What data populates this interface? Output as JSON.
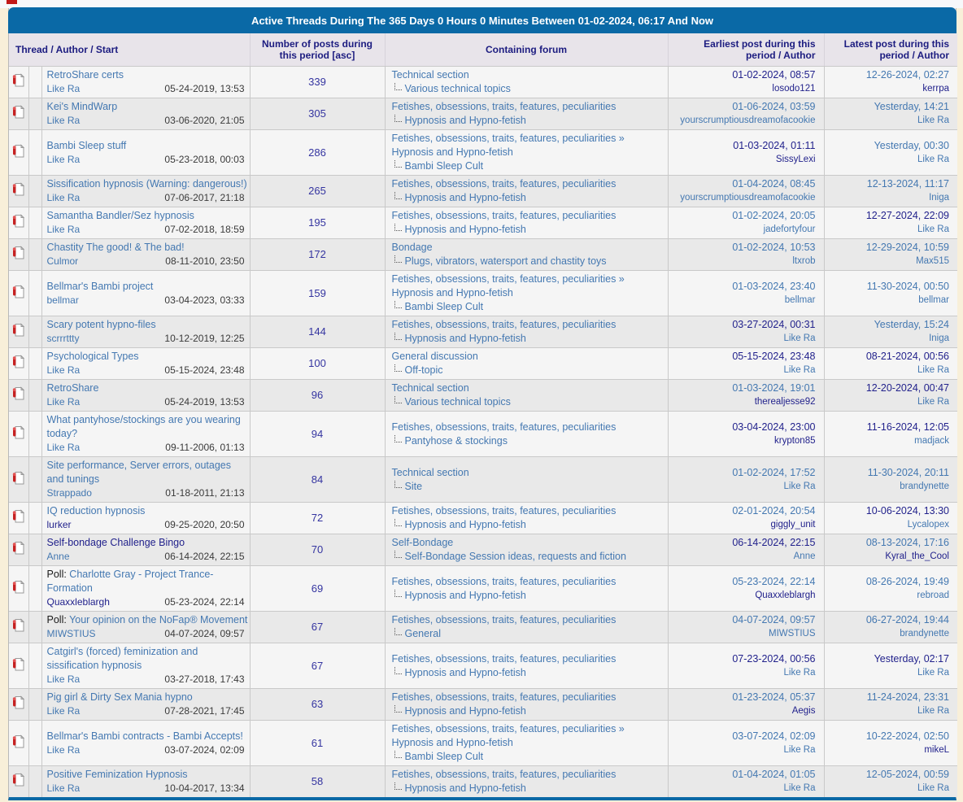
{
  "title": "Active Threads During The 365 Days 0 Hours 0 Minutes Between 01-02-2024, 06:17 And Now",
  "columns": {
    "thread": "Thread / Author / Start",
    "posts": "Number of posts during this period",
    "posts_sort": "[asc]",
    "forum": "Containing forum",
    "earliest": "Earliest post during this period / Author",
    "latest": "Latest post during this period / Author"
  },
  "colors": {
    "header_blue": "#0a69a6",
    "page_cream": "#f8efd9",
    "link_blue": "#4478b1",
    "visited_navy": "#22228c",
    "row_light": "#f5f5f5",
    "row_dark": "#e9e9e9",
    "red_marker": "#c11818"
  },
  "rows": [
    {
      "title": "RetroShare certs",
      "title_visited": false,
      "author": "Like Ra",
      "author_visited": false,
      "start": "05-24-2019, 13:53",
      "posts": "339",
      "forum_parent": "Technical section",
      "subforum": "Various technical topics",
      "earliest_date": "01-02-2024, 08:57",
      "earliest_date_visited": true,
      "earliest_author": "losodo121",
      "earliest_author_visited": true,
      "latest_date": "12-26-2024, 02:27",
      "latest_date_visited": false,
      "latest_author": "kerrpa",
      "latest_author_visited": true
    },
    {
      "title": "Kei's MindWarp",
      "title_visited": false,
      "author": "Like Ra",
      "author_visited": false,
      "start": "03-06-2020, 21:05",
      "posts": "305",
      "forum_parent": "Fetishes, obsessions, traits, features, peculiarities",
      "subforum": "Hypnosis and Hypno-fetish",
      "earliest_date": "01-06-2024, 03:59",
      "earliest_date_visited": false,
      "earliest_author": "yourscrumptiousdreamofacookie",
      "earliest_author_visited": false,
      "latest_date": "Yesterday, 14:21",
      "latest_date_visited": false,
      "latest_author": "Like Ra",
      "latest_author_visited": false
    },
    {
      "title": "Bambi Sleep stuff",
      "title_visited": false,
      "author": "Like Ra",
      "author_visited": false,
      "start": "05-23-2018, 00:03",
      "posts": "286",
      "forum_parent": "Fetishes, obsessions, traits, features, peculiarities » Hypnosis and Hypno-fetish",
      "subforum": "Bambi Sleep Cult",
      "earliest_date": "01-03-2024, 01:11",
      "earliest_date_visited": true,
      "earliest_author": "SissyLexi",
      "earliest_author_visited": true,
      "latest_date": "Yesterday, 00:30",
      "latest_date_visited": false,
      "latest_author": "Like Ra",
      "latest_author_visited": false
    },
    {
      "title": "Sissification hypnosis (Warning: dangerous!)",
      "title_visited": false,
      "author": "Like Ra",
      "author_visited": false,
      "start": "07-06-2017, 21:18",
      "posts": "265",
      "forum_parent": "Fetishes, obsessions, traits, features, peculiarities",
      "subforum": "Hypnosis and Hypno-fetish",
      "earliest_date": "01-04-2024, 08:45",
      "earliest_date_visited": false,
      "earliest_author": "yourscrumptiousdreamofacookie",
      "earliest_author_visited": false,
      "latest_date": "12-13-2024, 11:17",
      "latest_date_visited": false,
      "latest_author": "Iniga",
      "latest_author_visited": false
    },
    {
      "title": "Samantha Bandler/Sez hypnosis",
      "title_visited": false,
      "author": "Like Ra",
      "author_visited": false,
      "start": "07-02-2018, 18:59",
      "posts": "195",
      "forum_parent": "Fetishes, obsessions, traits, features, peculiarities",
      "subforum": "Hypnosis and Hypno-fetish",
      "earliest_date": "01-02-2024, 20:05",
      "earliest_date_visited": false,
      "earliest_author": "jadefortyfour",
      "earliest_author_visited": false,
      "latest_date": "12-27-2024, 22:09",
      "latest_date_visited": true,
      "latest_author": "Like Ra",
      "latest_author_visited": false
    },
    {
      "title": "Chastity The good! & The bad!",
      "title_visited": false,
      "author": "Culmor",
      "author_visited": false,
      "start": "08-11-2010, 23:50",
      "posts": "172",
      "forum_parent": "Bondage",
      "subforum": "Plugs, vibrators, watersport and chastity toys",
      "earliest_date": "01-02-2024, 10:53",
      "earliest_date_visited": false,
      "earliest_author": "ltxrob",
      "earliest_author_visited": false,
      "latest_date": "12-29-2024, 10:59",
      "latest_date_visited": false,
      "latest_author": "Max515",
      "latest_author_visited": false
    },
    {
      "title": "Bellmar's Bambi project",
      "title_visited": false,
      "author": "bellmar",
      "author_visited": false,
      "start": "03-04-2023, 03:33",
      "posts": "159",
      "forum_parent": "Fetishes, obsessions, traits, features, peculiarities » Hypnosis and Hypno-fetish",
      "subforum": "Bambi Sleep Cult",
      "earliest_date": "01-03-2024, 23:40",
      "earliest_date_visited": false,
      "earliest_author": "bellmar",
      "earliest_author_visited": false,
      "latest_date": "11-30-2024, 00:50",
      "latest_date_visited": false,
      "latest_author": "bellmar",
      "latest_author_visited": false
    },
    {
      "title": "Scary potent hypno-files",
      "title_visited": false,
      "author": "scrrrttty",
      "author_visited": false,
      "start": "10-12-2019, 12:25",
      "posts": "144",
      "forum_parent": "Fetishes, obsessions, traits, features, peculiarities",
      "subforum": "Hypnosis and Hypno-fetish",
      "earliest_date": "03-27-2024, 00:31",
      "earliest_date_visited": true,
      "earliest_author": "Like Ra",
      "earliest_author_visited": false,
      "latest_date": "Yesterday, 15:24",
      "latest_date_visited": false,
      "latest_author": "Iniga",
      "latest_author_visited": false
    },
    {
      "title": "Psychological Types",
      "title_visited": false,
      "author": "Like Ra",
      "author_visited": false,
      "start": "05-15-2024, 23:48",
      "posts": "100",
      "forum_parent": "General discussion",
      "subforum": "Off-topic",
      "earliest_date": "05-15-2024, 23:48",
      "earliest_date_visited": true,
      "earliest_author": "Like Ra",
      "earliest_author_visited": false,
      "latest_date": "08-21-2024, 00:56",
      "latest_date_visited": true,
      "latest_author": "Like Ra",
      "latest_author_visited": false
    },
    {
      "title": "RetroShare",
      "title_visited": false,
      "author": "Like Ra",
      "author_visited": false,
      "start": "05-24-2019, 13:53",
      "posts": "96",
      "forum_parent": "Technical section",
      "subforum": "Various technical topics",
      "earliest_date": "01-03-2024, 19:01",
      "earliest_date_visited": false,
      "earliest_author": "therealjesse92",
      "earliest_author_visited": true,
      "latest_date": "12-20-2024, 00:47",
      "latest_date_visited": true,
      "latest_author": "Like Ra",
      "latest_author_visited": false
    },
    {
      "title": "What pantyhose/stockings are you wearing today?",
      "title_visited": false,
      "author": "Like Ra",
      "author_visited": false,
      "start": "09-11-2006, 01:13",
      "posts": "94",
      "forum_parent": "Fetishes, obsessions, traits, features, peculiarities",
      "subforum": "Pantyhose & stockings",
      "earliest_date": "03-04-2024, 23:00",
      "earliest_date_visited": true,
      "earliest_author": "krypton85",
      "earliest_author_visited": true,
      "latest_date": "11-16-2024, 12:05",
      "latest_date_visited": true,
      "latest_author": "madjack",
      "latest_author_visited": false
    },
    {
      "title": "Site performance, Server errors, outages and tunings",
      "title_visited": false,
      "author": "Strappado",
      "author_visited": false,
      "start": "01-18-2011, 21:13",
      "posts": "84",
      "forum_parent": "Technical section",
      "subforum": "Site",
      "earliest_date": "01-02-2024, 17:52",
      "earliest_date_visited": false,
      "earliest_author": "Like Ra",
      "earliest_author_visited": false,
      "latest_date": "11-30-2024, 20:11",
      "latest_date_visited": false,
      "latest_author": "brandynette",
      "latest_author_visited": false
    },
    {
      "title": "IQ reduction hypnosis",
      "title_visited": false,
      "author": "lurker",
      "author_visited": true,
      "start": "09-25-2020, 20:50",
      "posts": "72",
      "forum_parent": "Fetishes, obsessions, traits, features, peculiarities",
      "subforum": "Hypnosis and Hypno-fetish",
      "earliest_date": "02-01-2024, 20:54",
      "earliest_date_visited": false,
      "earliest_author": "giggly_unit",
      "earliest_author_visited": true,
      "latest_date": "10-06-2024, 13:30",
      "latest_date_visited": true,
      "latest_author": "Lycalopex",
      "latest_author_visited": false
    },
    {
      "title": "Self-bondage Challenge Bingo",
      "title_visited": true,
      "author": "Anne",
      "author_visited": false,
      "start": "06-14-2024, 22:15",
      "posts": "70",
      "forum_parent": "Self-Bondage",
      "subforum": "Self-Bondage Session ideas, requests and fiction",
      "earliest_date": "06-14-2024, 22:15",
      "earliest_date_visited": true,
      "earliest_author": "Anne",
      "earliest_author_visited": false,
      "latest_date": "08-13-2024, 17:16",
      "latest_date_visited": false,
      "latest_author": "Kyral_the_Cool",
      "latest_author_visited": true
    },
    {
      "poll_prefix": "Poll:",
      "title": "Charlotte Gray - Project Trance-Formation",
      "title_visited": false,
      "author": "Quaxxleblargh",
      "author_visited": true,
      "start": "05-23-2024, 22:14",
      "posts": "69",
      "forum_parent": "Fetishes, obsessions, traits, features, peculiarities",
      "subforum": "Hypnosis and Hypno-fetish",
      "earliest_date": "05-23-2024, 22:14",
      "earliest_date_visited": false,
      "earliest_author": "Quaxxleblargh",
      "earliest_author_visited": true,
      "latest_date": "08-26-2024, 19:49",
      "latest_date_visited": false,
      "latest_author": "rebroad",
      "latest_author_visited": false
    },
    {
      "poll_prefix": "Poll:",
      "title": "Your opinion on the NoFap® Movement",
      "title_visited": false,
      "author": "MIWSTIUS",
      "author_visited": false,
      "start": "04-07-2024, 09:57",
      "posts": "67",
      "forum_parent": "Fetishes, obsessions, traits, features, peculiarities",
      "subforum": "General",
      "earliest_date": "04-07-2024, 09:57",
      "earliest_date_visited": false,
      "earliest_author": "MIWSTIUS",
      "earliest_author_visited": false,
      "latest_date": "06-27-2024, 19:44",
      "latest_date_visited": false,
      "latest_author": "brandynette",
      "latest_author_visited": false
    },
    {
      "title": "Catgirl's (forced) feminization and sissification hypnosis",
      "title_visited": false,
      "author": "Like Ra",
      "author_visited": false,
      "start": "03-27-2018, 17:43",
      "posts": "67",
      "forum_parent": "Fetishes, obsessions, traits, features, peculiarities",
      "subforum": "Hypnosis and Hypno-fetish",
      "earliest_date": "07-23-2024, 00:56",
      "earliest_date_visited": true,
      "earliest_author": "Like Ra",
      "earliest_author_visited": false,
      "latest_date": "Yesterday, 02:17",
      "latest_date_visited": true,
      "latest_author": "Like Ra",
      "latest_author_visited": false
    },
    {
      "title": "Pig girl & Dirty Sex Mania hypno",
      "title_visited": false,
      "author": "Like Ra",
      "author_visited": false,
      "start": "07-28-2021, 17:45",
      "posts": "63",
      "forum_parent": "Fetishes, obsessions, traits, features, peculiarities",
      "subforum": "Hypnosis and Hypno-fetish",
      "earliest_date": "01-23-2024, 05:37",
      "earliest_date_visited": false,
      "earliest_author": "Aegis",
      "earliest_author_visited": true,
      "latest_date": "11-24-2024, 23:31",
      "latest_date_visited": false,
      "latest_author": "Like Ra",
      "latest_author_visited": false
    },
    {
      "title": "Bellmar's Bambi contracts - Bambi Accepts!",
      "title_visited": false,
      "author": "Like Ra",
      "author_visited": false,
      "start": "03-07-2024, 02:09",
      "posts": "61",
      "forum_parent": "Fetishes, obsessions, traits, features, peculiarities » Hypnosis and Hypno-fetish",
      "subforum": "Bambi Sleep Cult",
      "earliest_date": "03-07-2024, 02:09",
      "earliest_date_visited": false,
      "earliest_author": "Like Ra",
      "earliest_author_visited": false,
      "latest_date": "10-22-2024, 02:50",
      "latest_date_visited": false,
      "latest_author": "mikeL",
      "latest_author_visited": true
    },
    {
      "title": "Positive Feminization Hypnosis",
      "title_visited": false,
      "author": "Like Ra",
      "author_visited": false,
      "start": "10-04-2017, 13:34",
      "posts": "58",
      "forum_parent": "Fetishes, obsessions, traits, features, peculiarities",
      "subforum": "Hypnosis and Hypno-fetish",
      "earliest_date": "01-04-2024, 01:05",
      "earliest_date_visited": false,
      "earliest_author": "Like Ra",
      "earliest_author_visited": false,
      "latest_date": "12-05-2024, 00:59",
      "latest_date_visited": false,
      "latest_author": "Like Ra",
      "latest_author_visited": false
    }
  ]
}
